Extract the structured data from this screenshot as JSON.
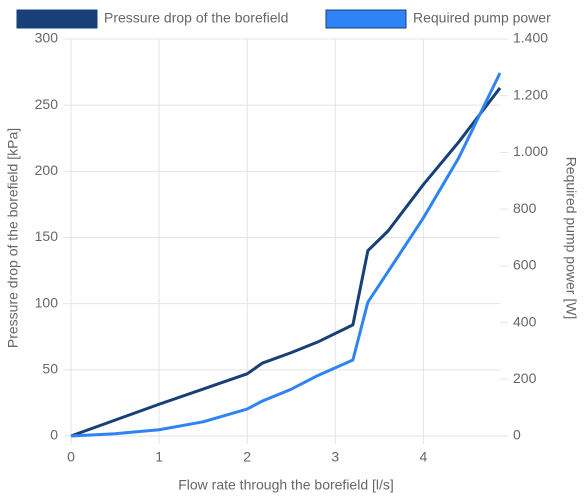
{
  "chart_data": {
    "type": "line",
    "x_label": "Flow rate through the borefield [l/s]",
    "y_label": "Pressure drop of the borefield [kPa]",
    "y2_label": "Required pump power [W]",
    "x": [
      0,
      0.5,
      1,
      1.5,
      2,
      2.17,
      2.5,
      2.8,
      3.2,
      3.37,
      3.6,
      4,
      4.4,
      4.87
    ],
    "series": [
      {
        "name": "Pressure drop of the borefield",
        "color": "#173f78",
        "axis": "y",
        "values": [
          0,
          12,
          24,
          35.5,
          47,
          55,
          63,
          71,
          84,
          140,
          155,
          190,
          222,
          263
        ]
      },
      {
        "name": "Required pump power",
        "color": "#2f84f5",
        "axis": "y2",
        "values": [
          0,
          8,
          22,
          50,
          95,
          123,
          165,
          213,
          268,
          472,
          580,
          769,
          980,
          1280
        ]
      }
    ],
    "xlim": [
      0,
      4.87
    ],
    "xticks": [
      0,
      1,
      2,
      3,
      4
    ],
    "ylim": [
      0,
      300
    ],
    "yticks": [
      0,
      50,
      100,
      150,
      200,
      250,
      300
    ],
    "y2lim": [
      0,
      1400
    ],
    "y2ticks": [
      0,
      200,
      400,
      600,
      800,
      {
        "value": 1000,
        "label": "1.000"
      },
      {
        "value": 1200,
        "label": "1.200"
      },
      {
        "value": 1400,
        "label": "1.400"
      }
    ],
    "grid": true,
    "legend": "top"
  }
}
